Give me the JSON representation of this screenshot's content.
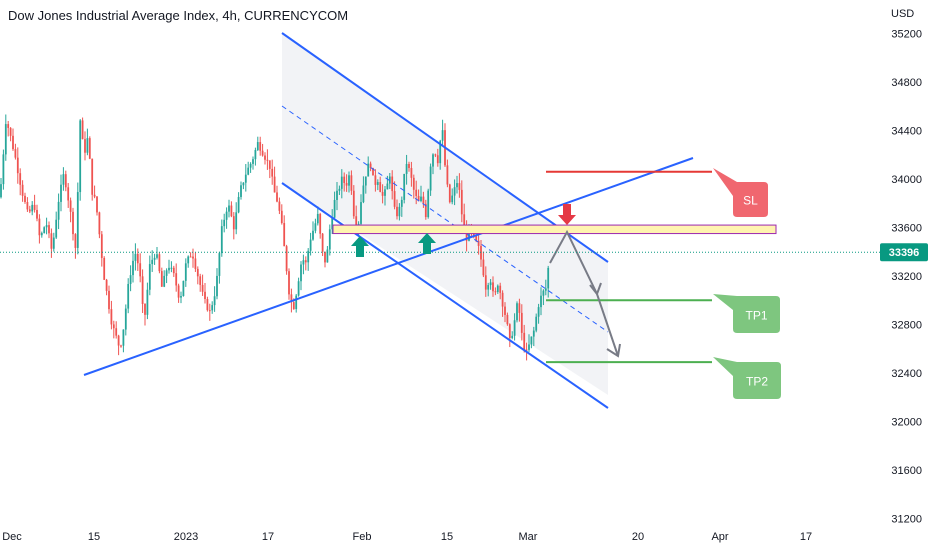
{
  "header": {
    "title": "Dow Jones Industrial Average Index, 4h, CURRENCYCOM",
    "currency": "USD"
  },
  "chart_data": {
    "type": "candlestick",
    "title": "Dow Jones Industrial Average Index, 4h, CURRENCYCOM",
    "ylabel": "USD",
    "ylim": [
      31100,
      35250
    ],
    "y_ticks": [
      31200,
      31600,
      32000,
      32400,
      32800,
      33200,
      33600,
      34000,
      34400,
      34800,
      35200
    ],
    "x_tick_labels": [
      "Dec",
      "15",
      "2023",
      "17",
      "Feb",
      "15",
      "Mar",
      "20",
      "Apr",
      "17"
    ],
    "last_price": {
      "label": "33396",
      "value": 33396
    },
    "annotations": {
      "sl_label": "SL",
      "tp1_label": "TP1",
      "tp2_label": "TP2",
      "sl_level": 34060,
      "resistance_zone": [
        33550,
        33620
      ],
      "tp1_level": 33000,
      "tp2_level": 32490
    },
    "colors": {
      "up": "#26a69a",
      "down": "#ef5350",
      "channel": "#2962ff",
      "sl": "#e53935",
      "tp": "#4caf50",
      "zone": "#fff3b0",
      "arrow_up": "#089981",
      "arrow_down": "#e53945",
      "projection": "#787b86"
    },
    "price_path": [
      [
        0,
        33850
      ],
      [
        6,
        34500
      ],
      [
        12,
        34300
      ],
      [
        16,
        34150
      ],
      [
        22,
        33900
      ],
      [
        28,
        33700
      ],
      [
        34,
        33800
      ],
      [
        40,
        33500
      ],
      [
        46,
        33650
      ],
      [
        52,
        33400
      ],
      [
        58,
        33800
      ],
      [
        64,
        34050
      ],
      [
        70,
        33750
      ],
      [
        76,
        33400
      ],
      [
        80,
        34500
      ],
      [
        84,
        34200
      ],
      [
        88,
        34350
      ],
      [
        92,
        33900
      ],
      [
        96,
        33800
      ],
      [
        100,
        33500
      ],
      [
        104,
        33200
      ],
      [
        108,
        33000
      ],
      [
        112,
        32800
      ],
      [
        116,
        32700
      ],
      [
        120,
        32600
      ],
      [
        124,
        32800
      ],
      [
        128,
        33100
      ],
      [
        132,
        33300
      ],
      [
        136,
        33400
      ],
      [
        140,
        33200
      ],
      [
        144,
        32800
      ],
      [
        150,
        33300
      ],
      [
        156,
        33400
      ],
      [
        162,
        33100
      ],
      [
        168,
        33300
      ],
      [
        174,
        33200
      ],
      [
        180,
        33000
      ],
      [
        186,
        33300
      ],
      [
        192,
        33400
      ],
      [
        198,
        33200
      ],
      [
        204,
        33000
      ],
      [
        210,
        32900
      ],
      [
        216,
        33100
      ],
      [
        222,
        33600
      ],
      [
        228,
        33800
      ],
      [
        234,
        33600
      ],
      [
        240,
        33900
      ],
      [
        246,
        34050
      ],
      [
        252,
        34150
      ],
      [
        258,
        34300
      ],
      [
        264,
        34200
      ],
      [
        270,
        34100
      ],
      [
        274,
        33900
      ],
      [
        278,
        33800
      ],
      [
        282,
        33600
      ],
      [
        286,
        33300
      ],
      [
        290,
        33000
      ],
      [
        294,
        32950
      ],
      [
        298,
        33150
      ],
      [
        302,
        33350
      ],
      [
        306,
        33300
      ],
      [
        310,
        33500
      ],
      [
        314,
        33600
      ],
      [
        318,
        33700
      ],
      [
        322,
        33400
      ],
      [
        326,
        33300
      ],
      [
        330,
        33600
      ],
      [
        334,
        33800
      ],
      [
        338,
        33900
      ],
      [
        342,
        34000
      ],
      [
        346,
        33950
      ],
      [
        350,
        34050
      ],
      [
        354,
        33700
      ],
      [
        358,
        33600
      ],
      [
        362,
        33900
      ],
      [
        366,
        34050
      ],
      [
        370,
        34150
      ],
      [
        374,
        33950
      ],
      [
        378,
        34000
      ],
      [
        382,
        33850
      ],
      [
        386,
        33900
      ],
      [
        390,
        34050
      ],
      [
        394,
        33750
      ],
      [
        398,
        33700
      ],
      [
        402,
        33850
      ],
      [
        406,
        34150
      ],
      [
        410,
        34050
      ],
      [
        414,
        33900
      ],
      [
        418,
        33800
      ],
      [
        422,
        33850
      ],
      [
        426,
        33700
      ],
      [
        430,
        34100
      ],
      [
        434,
        34250
      ],
      [
        438,
        34150
      ],
      [
        442,
        34450
      ],
      [
        446,
        34000
      ],
      [
        450,
        33800
      ],
      [
        454,
        33900
      ],
      [
        458,
        34000
      ],
      [
        462,
        33700
      ],
      [
        466,
        33500
      ],
      [
        470,
        33600
      ],
      [
        474,
        33500
      ],
      [
        478,
        33450
      ],
      [
        482,
        33300
      ],
      [
        486,
        33100
      ],
      [
        490,
        33200
      ],
      [
        494,
        33000
      ],
      [
        498,
        33150
      ],
      [
        502,
        33000
      ],
      [
        506,
        32850
      ],
      [
        510,
        32650
      ],
      [
        514,
        32800
      ],
      [
        518,
        33000
      ],
      [
        522,
        32700
      ],
      [
        526,
        32550
      ],
      [
        530,
        32650
      ],
      [
        534,
        32750
      ],
      [
        538,
        32950
      ],
      [
        542,
        33050
      ],
      [
        546,
        33100
      ],
      [
        550,
        33396
      ]
    ]
  }
}
